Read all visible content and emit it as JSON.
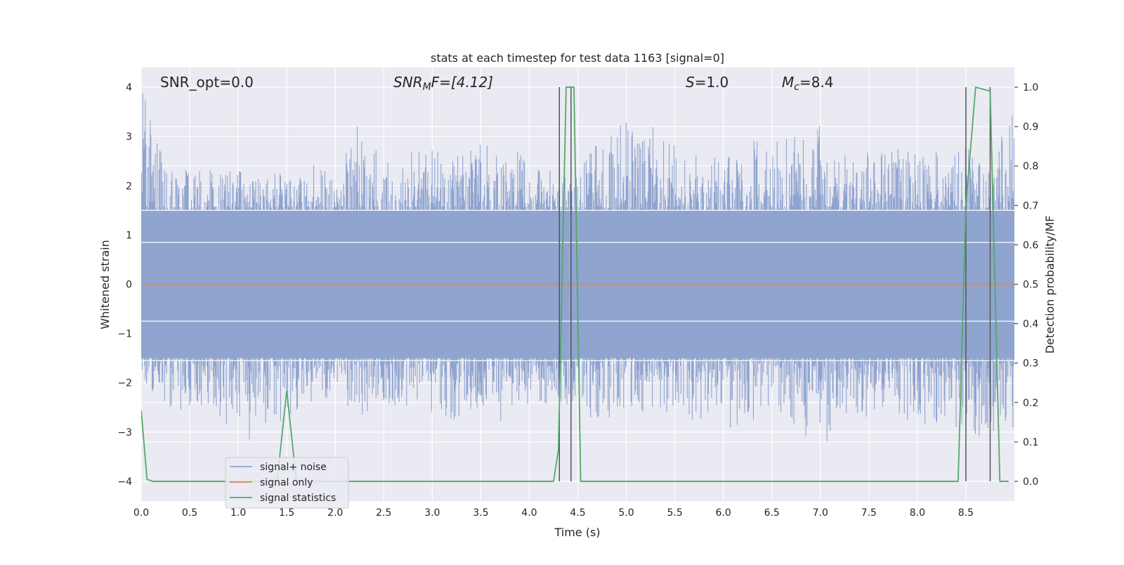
{
  "chart_data": {
    "type": "line",
    "title": "stats at each timestep for test data 1163 [signal=0]",
    "xlabel": "Time (s)",
    "ylabel_left": "Whitened strain",
    "ylabel_right": "Detection probability/MF",
    "xlim": [
      0.0,
      9.0
    ],
    "ylim_left": [
      -4.4,
      4.4
    ],
    "ylim_right": [
      -0.05,
      1.05
    ],
    "xticks": [
      "0.0",
      "0.5",
      "1.0",
      "1.5",
      "2.0",
      "2.5",
      "3.0",
      "3.5",
      "4.0",
      "4.5",
      "5.0",
      "5.5",
      "6.0",
      "6.5",
      "7.0",
      "7.5",
      "8.0",
      "8.5"
    ],
    "yticks_left": [
      "4",
      "3",
      "2",
      "1",
      "0",
      "−1",
      "−2",
      "−3",
      "−4"
    ],
    "yticks_right": [
      "1.0",
      "0.9",
      "0.8",
      "0.7",
      "0.6",
      "0.5",
      "0.4",
      "0.3",
      "0.2",
      "0.1",
      "0.0"
    ],
    "grid": true,
    "legend_position": "lower-left",
    "annotations": {
      "snr_opt": "SNR_opt=0.0",
      "snr_mf_main": "SNR",
      "snr_mf_sub": "M",
      "snr_mf_tail": "F=[4.12]",
      "s_main": "S",
      "s_tail": "=1.0",
      "mc_main": "M",
      "mc_sub": "c",
      "mc_tail": "=8.4"
    },
    "series": [
      {
        "name": "signal+ noise",
        "color": "#8fa4cf",
        "axis": "left",
        "envelope_x": [
          0.0,
          0.25,
          0.5,
          0.75,
          1.0,
          1.25,
          1.5,
          1.75,
          2.0,
          2.25,
          2.5,
          2.75,
          3.0,
          3.25,
          3.5,
          3.75,
          4.0,
          4.25,
          4.5,
          4.75,
          5.0,
          5.25,
          5.5,
          5.75,
          6.0,
          6.25,
          6.5,
          6.75,
          7.0,
          7.25,
          7.5,
          7.75,
          8.0,
          8.25,
          8.5,
          8.75,
          9.0
        ],
        "envelope_upper": [
          4.0,
          2.4,
          2.4,
          2.4,
          2.3,
          2.3,
          2.4,
          2.6,
          2.1,
          3.5,
          2.6,
          2.8,
          2.9,
          2.6,
          2.9,
          2.6,
          2.8,
          2.3,
          2.2,
          3.2,
          3.3,
          3.3,
          2.9,
          2.6,
          2.6,
          2.9,
          2.9,
          3.0,
          3.3,
          2.7,
          2.8,
          2.8,
          2.7,
          2.7,
          2.8,
          2.4,
          3.7
        ],
        "envelope_lower": [
          -1.9,
          -2.6,
          -2.6,
          -2.5,
          -3.3,
          -3.0,
          -3.0,
          -2.4,
          -2.3,
          -2.7,
          -2.5,
          -2.5,
          -2.6,
          -2.8,
          -2.9,
          -2.8,
          -2.5,
          -2.4,
          -2.6,
          -2.8,
          -2.5,
          -2.9,
          -2.7,
          -2.8,
          -3.0,
          -2.9,
          -2.5,
          -3.0,
          -3.6,
          -2.7,
          -2.7,
          -2.7,
          -2.8,
          -3.0,
          -3.1,
          -3.2,
          -2.9
        ]
      },
      {
        "name": "signal only",
        "color": "#dd8452",
        "axis": "left",
        "x": [
          0.0,
          9.0
        ],
        "y": [
          0.0,
          0.0
        ]
      },
      {
        "name": "signal statistics",
        "color": "#55a868",
        "axis": "right",
        "x": [
          0.0,
          0.06,
          0.12,
          1.4,
          1.5,
          1.6,
          4.25,
          4.3,
          4.38,
          4.46,
          4.53,
          4.6,
          8.42,
          8.5,
          8.6,
          8.75,
          8.85,
          8.94
        ],
        "y": [
          0.18,
          0.005,
          0.0,
          0.0,
          0.23,
          0.0,
          0.0,
          0.08,
          1.0,
          1.0,
          0.0,
          0.0,
          0.0,
          0.7,
          1.0,
          0.99,
          0.0,
          0.0
        ]
      }
    ],
    "vertical_markers": [
      4.31,
      4.43,
      8.5,
      8.75
    ]
  }
}
